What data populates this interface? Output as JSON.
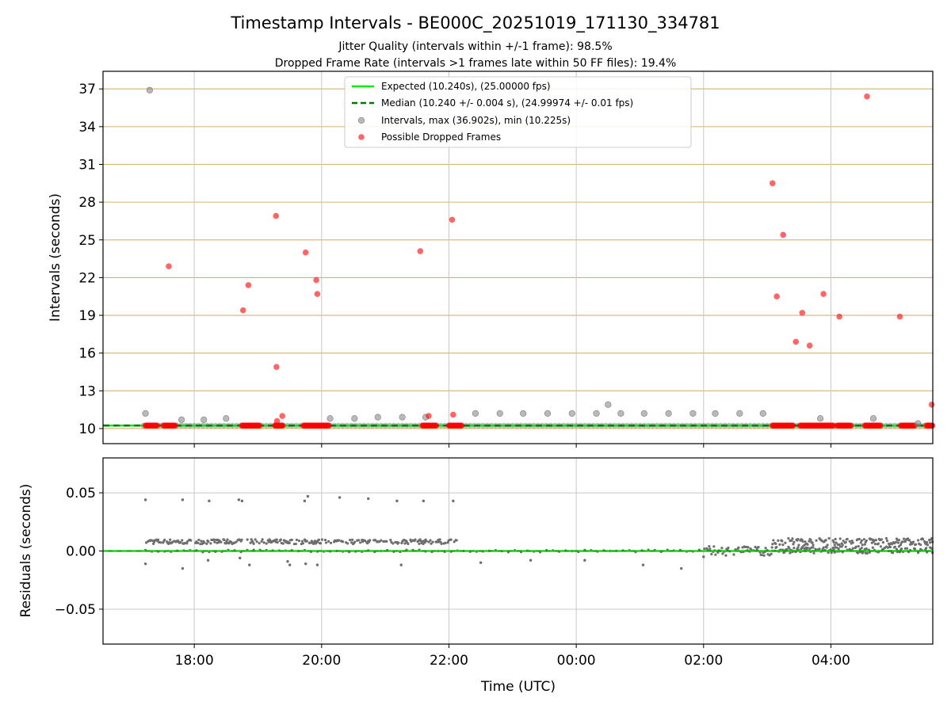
{
  "chart_data": [
    {
      "type": "scatter",
      "title": "Timestamp Intervals - BE000C_20251019_171130_334781",
      "subtitles": [
        "Jitter Quality (intervals within +/-1 frame): 98.5%",
        "Dropped Frame Rate (intervals >1 frames late within 50 FF files): 19.4%"
      ],
      "xlabel": "",
      "ylabel": "Intervals (seconds)",
      "xlim": [
        "2025-10-19T16:34:00",
        "2025-10-20T05:36:00"
      ],
      "ylim": [
        8.8,
        38.4
      ],
      "yticks": [
        10,
        13,
        16,
        19,
        22,
        25,
        28,
        31,
        34,
        37
      ],
      "ytick_labels": [
        "10",
        "13",
        "16",
        "19",
        "22",
        "25",
        "28",
        "31",
        "34",
        "37"
      ],
      "grid": true,
      "legend_position": "upper-center",
      "legend": [
        "Expected (10.240s), (25.00000 fps)",
        "Median (10.240 +/- 0.004 s), (24.99974 +/- 0.01 fps)",
        "Intervals, max (36.902s), min (10.225s)",
        "Possible Dropped Frames"
      ],
      "expected_interval": 10.24,
      "median_interval": 10.24,
      "colors": {
        "expected": "#00ee00",
        "median": "#007700",
        "intervals": "#808080",
        "dropped": "#ff0000",
        "grid_h": "#d4b467",
        "grid_v": "#c8c8c8"
      },
      "series": [
        {
          "name": "Intervals, max (36.902s), min (10.225s)",
          "x": [
            "2025-10-19T17:14:00",
            "2025-10-19T17:18:00",
            "2025-10-19T17:48:00",
            "2025-10-19T18:09:00",
            "2025-10-19T18:30:00",
            "2025-10-19T20:08:00",
            "2025-10-19T20:31:00",
            "2025-10-19T20:53:00",
            "2025-10-19T21:16:00",
            "2025-10-19T21:38:00",
            "2025-10-19T22:25:00",
            "2025-10-19T22:48:00",
            "2025-10-19T23:10:00",
            "2025-10-19T23:33:00",
            "2025-10-19T23:56:00",
            "2025-10-20T00:19:00",
            "2025-10-20T00:30:00",
            "2025-10-20T00:42:00",
            "2025-10-20T01:04:00",
            "2025-10-20T01:27:00",
            "2025-10-20T01:50:00",
            "2025-10-20T02:11:00",
            "2025-10-20T02:34:00",
            "2025-10-20T02:56:00",
            "2025-10-20T03:50:00",
            "2025-10-20T04:40:00",
            "2025-10-20T05:22:00"
          ],
          "y": [
            11.2,
            36.9,
            10.7,
            10.7,
            10.8,
            10.8,
            10.8,
            10.9,
            10.9,
            10.9,
            11.2,
            11.2,
            11.2,
            11.2,
            11.2,
            11.2,
            11.9,
            11.2,
            11.2,
            11.2,
            11.2,
            11.2,
            11.2,
            11.2,
            10.8,
            10.8,
            10.4
          ]
        },
        {
          "name": "Possible Dropped Frames",
          "x": [
            "2025-10-19T17:36:00",
            "2025-10-19T18:46:00",
            "2025-10-19T18:51:00",
            "2025-10-19T19:17:00",
            "2025-10-19T19:17:30",
            "2025-10-19T19:18:00",
            "2025-10-19T19:23:00",
            "2025-10-19T19:45:00",
            "2025-10-19T19:55:00",
            "2025-10-19T19:56:00",
            "2025-10-19T21:33:00",
            "2025-10-19T21:41:00",
            "2025-10-19T22:03:00",
            "2025-10-19T22:04:00",
            "2025-10-20T03:05:00",
            "2025-10-20T03:09:00",
            "2025-10-20T03:15:00",
            "2025-10-20T03:27:00",
            "2025-10-20T03:33:00",
            "2025-10-20T03:40:00",
            "2025-10-20T03:53:00",
            "2025-10-20T04:08:00",
            "2025-10-20T04:34:00",
            "2025-10-20T05:05:00",
            "2025-10-20T05:35:00"
          ],
          "y": [
            22.9,
            19.4,
            21.4,
            26.9,
            14.9,
            10.6,
            11.0,
            24.0,
            21.8,
            20.7,
            24.1,
            11.0,
            26.6,
            11.1,
            29.5,
            20.5,
            25.4,
            16.9,
            19.2,
            16.6,
            20.7,
            18.9,
            36.4,
            18.9,
            11.9
          ]
        }
      ],
      "series_baseline": {
        "red_clusters": [
          [
            "2025-10-19T17:14:00",
            "2025-10-19T17:25:00"
          ],
          [
            "2025-10-19T17:31:00",
            "2025-10-19T17:42:00"
          ],
          [
            "2025-10-19T18:45:00",
            "2025-10-19T19:02:00"
          ],
          [
            "2025-10-19T19:16:00",
            "2025-10-19T19:24:00"
          ],
          [
            "2025-10-19T19:43:00",
            "2025-10-19T20:07:00"
          ],
          [
            "2025-10-19T21:35:00",
            "2025-10-19T21:48:00"
          ],
          [
            "2025-10-19T22:00:00",
            "2025-10-19T22:12:00"
          ],
          [
            "2025-10-20T03:05:00",
            "2025-10-20T03:25:00"
          ],
          [
            "2025-10-20T03:31:00",
            "2025-10-20T04:03:00"
          ],
          [
            "2025-10-20T04:06:00",
            "2025-10-20T04:19:00"
          ],
          [
            "2025-10-20T04:32:00",
            "2025-10-20T04:47:00"
          ],
          [
            "2025-10-20T05:06:00",
            "2025-10-20T05:19:00"
          ],
          [
            "2025-10-20T05:30:00",
            "2025-10-20T05:36:00"
          ]
        ],
        "value": 10.24
      }
    },
    {
      "type": "scatter",
      "title": "",
      "xlabel": "Time (UTC)",
      "ylabel": "Residuals (seconds)",
      "xlim": [
        "2025-10-19T16:34:00",
        "2025-10-20T05:36:00"
      ],
      "ylim": [
        -0.08,
        0.08
      ],
      "yticks": [
        -0.05,
        0.0,
        0.05
      ],
      "ytick_labels": [
        "−0.05",
        "0.00",
        "0.05"
      ],
      "xticks": [
        "2025-10-19T18:00:00",
        "2025-10-19T20:00:00",
        "2025-10-19T22:00:00",
        "2025-10-20T00:00:00",
        "2025-10-20T02:00:00",
        "2025-10-20T04:00:00"
      ],
      "xtick_labels": [
        "18:00",
        "20:00",
        "22:00",
        "00:00",
        "02:00",
        "04:00"
      ],
      "grid": true,
      "zero_line": 0.0,
      "colors": {
        "points": "#6e6e6e",
        "zero": "#00aa00",
        "grid": "#c8c8c8"
      },
      "series": [
        {
          "name": "Residuals",
          "x": [
            "2025-10-19T17:14:00",
            "2025-10-19T17:49:00",
            "2025-10-19T18:14:00",
            "2025-10-19T18:42:00",
            "2025-10-19T18:45:00",
            "2025-10-19T19:44:00",
            "2025-10-19T19:47:00",
            "2025-10-19T20:17:00",
            "2025-10-19T20:44:00",
            "2025-10-19T21:11:00",
            "2025-10-19T21:36:00",
            "2025-10-19T22:04:00",
            "2025-10-19T17:14:00",
            "2025-10-19T17:49:00",
            "2025-10-19T18:13:00",
            "2025-10-19T18:43:00",
            "2025-10-19T18:52:00",
            "2025-10-19T19:28:00",
            "2025-10-19T19:30:00",
            "2025-10-19T19:45:00",
            "2025-10-19T19:56:00",
            "2025-10-19T21:15:00",
            "2025-10-19T22:30:00",
            "2025-10-19T23:17:00",
            "2025-10-20T00:08:00",
            "2025-10-20T01:03:00",
            "2025-10-20T01:39:00",
            "2025-10-20T02:00:00"
          ],
          "y": [
            0.044,
            0.044,
            0.043,
            0.044,
            0.043,
            0.043,
            0.047,
            0.046,
            0.045,
            0.043,
            0.043,
            0.043,
            -0.011,
            -0.015,
            -0.008,
            -0.006,
            -0.012,
            -0.009,
            -0.012,
            -0.011,
            -0.012,
            -0.012,
            -0.01,
            -0.008,
            -0.008,
            -0.012,
            -0.015,
            -0.005
          ]
        }
      ],
      "bands": [
        {
          "from": "2025-10-19T17:14:00",
          "to": "2025-10-19T22:08:00",
          "level": 0.008,
          "spread": 0.002
        },
        {
          "from": "2025-10-20T02:00:00",
          "to": "2025-10-20T03:05:00",
          "level": 0.0,
          "spread": 0.004
        },
        {
          "from": "2025-10-20T03:05:00",
          "to": "2025-10-20T05:36:00",
          "level": 0.008,
          "spread": 0.003
        },
        {
          "from": "2025-10-20T03:05:00",
          "to": "2025-10-20T05:36:00",
          "level": 0.001,
          "spread": 0.003
        }
      ]
    }
  ]
}
